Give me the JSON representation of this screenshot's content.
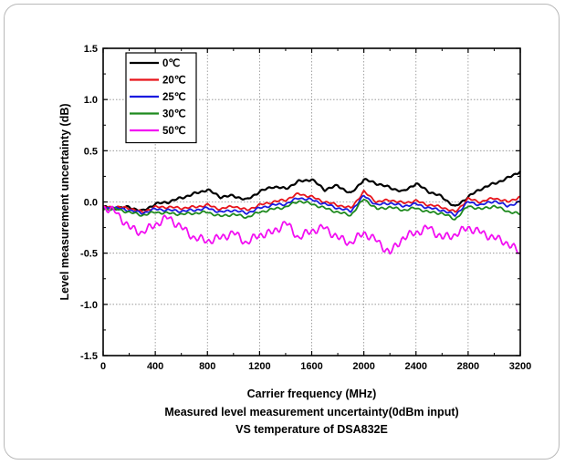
{
  "chart_data": {
    "type": "line",
    "xlabel": "Carrier frequency (MHz)",
    "ylabel": "Level measurement uncertainty (dB)",
    "caption": [
      "Measured level measurement uncertainty(0dBm input)",
      "VS temperature of DSA832E"
    ],
    "xlim": [
      0,
      3200
    ],
    "ylim": [
      -1.5,
      1.5
    ],
    "x_ticks": [
      "0",
      "400",
      "800",
      "1200",
      "1600",
      "2000",
      "2400",
      "2800",
      "3200"
    ],
    "y_ticks": [
      "1.5",
      "1.0",
      "0.5",
      "0.0",
      "-0.5",
      "-1.0",
      "-1.5"
    ],
    "grid": "dotted",
    "legend_position": "top-left",
    "x": [
      0,
      100,
      200,
      300,
      400,
      500,
      600,
      700,
      800,
      900,
      1000,
      1100,
      1200,
      1300,
      1400,
      1500,
      1600,
      1700,
      1800,
      1900,
      2000,
      2100,
      2200,
      2300,
      2400,
      2500,
      2600,
      2700,
      2800,
      2900,
      3000,
      3100,
      3200
    ],
    "series": [
      {
        "name": "0℃",
        "color": "#000000",
        "values": [
          -0.05,
          -0.06,
          -0.05,
          -0.09,
          -0.02,
          0.0,
          0.04,
          0.08,
          0.12,
          0.05,
          0.06,
          0.02,
          0.1,
          0.15,
          0.13,
          0.2,
          0.22,
          0.12,
          0.16,
          0.08,
          0.22,
          0.18,
          0.14,
          0.1,
          0.18,
          0.1,
          0.05,
          -0.05,
          0.05,
          0.13,
          0.18,
          0.23,
          0.3
        ]
      },
      {
        "name": "20℃",
        "color": "#e8141b",
        "values": [
          -0.05,
          -0.05,
          -0.06,
          -0.1,
          -0.05,
          -0.05,
          -0.06,
          -0.05,
          -0.03,
          -0.07,
          -0.04,
          -0.08,
          -0.03,
          0.0,
          0.02,
          0.08,
          0.05,
          0.0,
          -0.03,
          -0.06,
          0.1,
          0.0,
          0.02,
          -0.01,
          0.01,
          -0.03,
          -0.05,
          -0.1,
          0.03,
          0.0,
          0.04,
          0.0,
          0.05
        ]
      },
      {
        "name": "25℃",
        "color": "#1a1adf",
        "values": [
          -0.06,
          -0.06,
          -0.08,
          -0.11,
          -0.07,
          -0.08,
          -0.09,
          -0.08,
          -0.06,
          -0.1,
          -0.08,
          -0.11,
          -0.06,
          -0.03,
          -0.02,
          0.04,
          0.02,
          -0.02,
          -0.06,
          -0.09,
          0.06,
          -0.03,
          -0.01,
          -0.04,
          -0.02,
          -0.06,
          -0.08,
          -0.13,
          0.0,
          -0.03,
          0.01,
          -0.04,
          0.0
        ]
      },
      {
        "name": "30℃",
        "color": "#1e8a1e",
        "values": [
          -0.07,
          -0.07,
          -0.1,
          -0.13,
          -0.1,
          -0.11,
          -0.12,
          -0.11,
          -0.1,
          -0.14,
          -0.12,
          -0.15,
          -0.1,
          -0.07,
          -0.05,
          0.01,
          -0.02,
          -0.06,
          -0.1,
          -0.13,
          0.03,
          -0.07,
          -0.05,
          -0.08,
          -0.06,
          -0.1,
          -0.11,
          -0.17,
          -0.04,
          -0.07,
          -0.04,
          -0.09,
          -0.12
        ]
      },
      {
        "name": "50℃",
        "color": "#f20ff2",
        "values": [
          -0.05,
          -0.1,
          -0.25,
          -0.3,
          -0.22,
          -0.15,
          -0.25,
          -0.35,
          -0.38,
          -0.35,
          -0.3,
          -0.4,
          -0.32,
          -0.3,
          -0.2,
          -0.35,
          -0.28,
          -0.25,
          -0.35,
          -0.4,
          -0.3,
          -0.38,
          -0.5,
          -0.35,
          -0.3,
          -0.25,
          -0.35,
          -0.32,
          -0.25,
          -0.3,
          -0.35,
          -0.4,
          -0.5
        ]
      }
    ]
  }
}
